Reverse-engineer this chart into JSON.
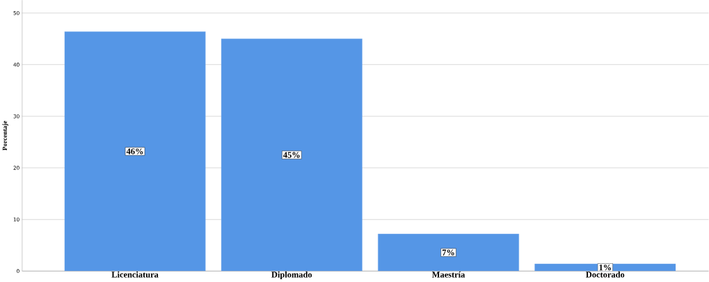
{
  "chart_data": {
    "type": "bar",
    "ylabel": "Porcentaje",
    "categories": [
      "Licenciatura",
      "Diplomado",
      "Maestría",
      "Doctorado"
    ],
    "values": [
      46.4,
      45.0,
      7.2,
      1.4
    ],
    "value_labels": [
      "46%",
      "45%",
      "7%",
      "1%"
    ],
    "color": "#5596e6",
    "ylim": [
      0,
      52.5
    ],
    "yticks": [
      0,
      10,
      20,
      30,
      40,
      50
    ],
    "grid": "y"
  }
}
